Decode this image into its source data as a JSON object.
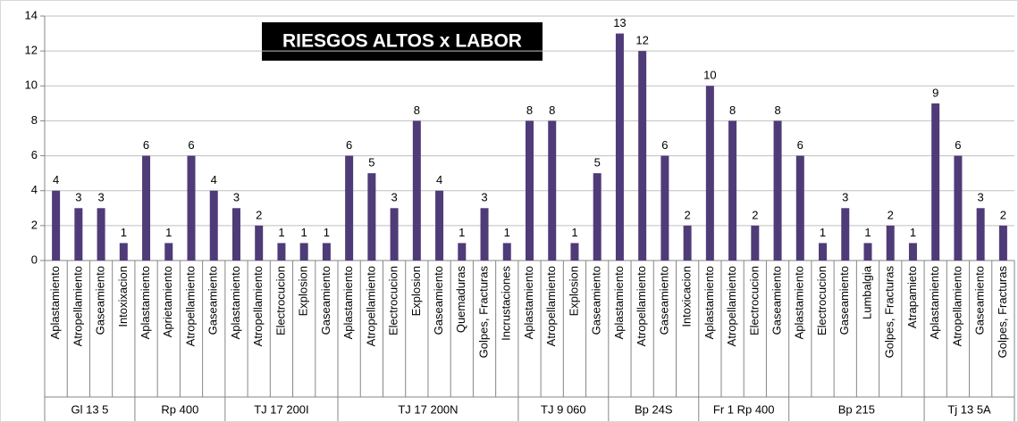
{
  "chart_data": {
    "type": "bar",
    "title": "RIESGOS ALTOS x LABOR",
    "color": "#4f3b78",
    "ylim": [
      0,
      14
    ],
    "yticks": [
      0,
      2,
      4,
      6,
      8,
      10,
      12,
      14
    ],
    "grid": true,
    "groups": [
      {
        "name": "Gl 13 5",
        "categories": [
          "Aplastamiento",
          "Atropellamiento",
          "Gaseamiento",
          "Intoxixacion"
        ],
        "values": [
          4,
          3,
          3,
          1
        ]
      },
      {
        "name": "Rp 400",
        "categories": [
          "Aplastamiento",
          "Aprietamiento",
          "Atropellamiento",
          "Gaseamiento"
        ],
        "values": [
          6,
          1,
          6,
          4
        ]
      },
      {
        "name": "TJ 17 200I",
        "categories": [
          "Aplastamiento",
          "Atropellamiento",
          "Electrocucion",
          "Explosion",
          "Gaseamiento"
        ],
        "values": [
          3,
          2,
          1,
          1,
          1
        ]
      },
      {
        "name": "TJ 17 200N",
        "categories": [
          "Aplastamiento",
          "Atropellamiento",
          "Electrocucion",
          "Explosion",
          "Gaseamiento",
          "Quemaduras",
          "Golpes, Fracturas",
          "Incrustaciones"
        ],
        "values": [
          6,
          5,
          3,
          8,
          4,
          1,
          3,
          1
        ]
      },
      {
        "name": "TJ 9 060",
        "categories": [
          "Aplastamiento",
          "Atropellamiento",
          "Explosion",
          "Gaseamiento"
        ],
        "values": [
          8,
          8,
          1,
          5
        ]
      },
      {
        "name": "Bp 24S",
        "categories": [
          "Aplastamiento",
          "Atropellamiento",
          "Gaseamiento",
          "Intoxicacion"
        ],
        "values": [
          13,
          12,
          6,
          2
        ]
      },
      {
        "name": "Fr 1 Rp 400",
        "categories": [
          "Aplastamiento",
          "Atropellamiento",
          "Electrocucion",
          "Gaseamiento"
        ],
        "values": [
          10,
          8,
          2,
          8
        ]
      },
      {
        "name": "Bp 215",
        "categories": [
          "Aplastamiento",
          "Electrocucion",
          "Gaseamiento",
          "Lumbalgia",
          "Golpes, Fracturas",
          "Atrapamieto"
        ],
        "values": [
          6,
          1,
          3,
          1,
          2,
          1
        ]
      },
      {
        "name": "Tj 13 5A",
        "categories": [
          "Aplastamiento",
          "Atropellamiento",
          "Gaseamiento",
          "Golpes, Fracturas"
        ],
        "values": [
          9,
          6,
          3,
          2
        ]
      }
    ]
  }
}
